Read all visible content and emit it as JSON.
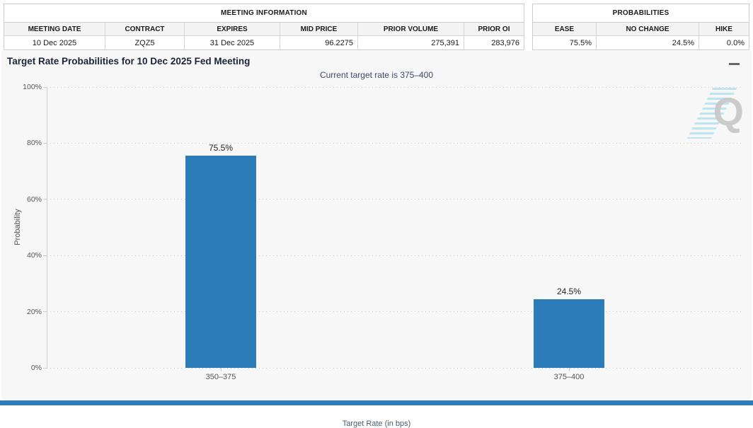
{
  "meeting_info": {
    "title": "MEETING INFORMATION",
    "headers": [
      "MEETING DATE",
      "CONTRACT",
      "EXPIRES",
      "MID PRICE",
      "PRIOR VOLUME",
      "PRIOR OI"
    ],
    "values": [
      "10 Dec 2025",
      "ZQZ5",
      "31 Dec 2025",
      "96.2275",
      "275,391",
      "283,976"
    ]
  },
  "probabilities": {
    "title": "PROBABILITIES",
    "headers": [
      "EASE",
      "NO CHANGE",
      "HIKE"
    ],
    "values": [
      "75.5%",
      "24.5%",
      "0.0%"
    ]
  },
  "chart": {
    "title": "Target Rate Probabilities for 10 Dec 2025 Fed Meeting",
    "subtitle": "Current target rate is 375–400",
    "watermark_letter": "Q"
  },
  "chart_data": {
    "type": "bar",
    "categories": [
      "350–375",
      "375–400"
    ],
    "values": [
      75.5,
      24.5
    ],
    "data_labels": [
      "75.5%",
      "24.5%"
    ],
    "title": "Target Rate Probabilities for 10 Dec 2025 Fed Meeting",
    "subtitle": "Current target rate is 375–400",
    "xlabel": "Target Rate (in bps)",
    "ylabel": "Probability",
    "ylim": [
      0,
      100
    ],
    "yticks": [
      "0%",
      "20%",
      "40%",
      "60%",
      "80%",
      "100%"
    ],
    "grid": "dotted-horizontal",
    "legend": "none",
    "bar_color": "#2b7cb9"
  },
  "colors": {
    "bar": "#2b7cb9",
    "bottom_accent": "#2b7cb9",
    "card_background": "#f7f7f7"
  }
}
